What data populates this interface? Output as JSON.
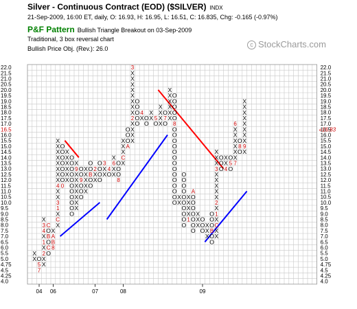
{
  "header": {
    "title": "Silver - Continuous Contract (EOD) ($SILVER)",
    "exchange": "INDX",
    "quote": "21-Sep-2009, 16:00 ET, daily, O: 16.93, H: 16.95, L: 16.51, C: 16.835, Chg: -0.165 (-0.97%)",
    "pattern_title": "P&F Pattern",
    "pattern_signal": "Bullish Triangle Breakout on 03-Sep-2009",
    "chart_type": "Traditional, 3 box reversal chart",
    "price_objective": "Bullish Price Obj. (Rev.): 26.0"
  },
  "watermark": {
    "text": "StockCharts.com",
    "icon": "copyright-icon"
  },
  "chart_data": {
    "type": "point-and-figure",
    "method": "Traditional",
    "reversal": 3,
    "price_levels": [
      "4.0",
      "4.25",
      "4.5",
      "4.75",
      "5.0",
      "5.5",
      "6.0",
      "6.5",
      "7.0",
      "7.5",
      "8.0",
      "8.5",
      "9.0",
      "9.5",
      "10.0",
      "10.5",
      "11.0",
      "11.5",
      "12.0",
      "12.5",
      "13.0",
      "13.5",
      "14.0",
      "14.5",
      "15.0",
      "15.5",
      "16.0",
      "16.5",
      "17.0",
      "17.5",
      "18.0",
      "18.5",
      "19.0",
      "19.5",
      "20.0",
      "20.5",
      "21.0",
      "21.5",
      "22.0"
    ],
    "current_price_label": "16.83",
    "year_labels": [
      {
        "text": "04",
        "col": 2
      },
      {
        "text": "06",
        "col": 5
      },
      {
        "text": "07",
        "col": 14
      },
      {
        "text": "08",
        "col": 20
      },
      {
        "text": "09",
        "col": 37
      }
    ],
    "columns": [
      {
        "type": "X",
        "from": 4,
        "to": 5
      },
      {
        "type": "O",
        "from": 2,
        "to": 4,
        "marks": [
          {
            "level": 3,
            "text": "5"
          },
          {
            "level": 2,
            "text": "7"
          }
        ]
      },
      {
        "type": "X",
        "from": 3,
        "to": 11,
        "marks": [
          {
            "level": 5,
            "text": "2"
          },
          {
            "level": 7,
            "text": "1"
          },
          {
            "level": 9,
            "text": "4"
          },
          {
            "level": 10,
            "text": "3"
          }
        ]
      },
      {
        "type": "O",
        "from": 5,
        "to": 10,
        "marks": [
          {
            "level": 6,
            "text": "C"
          },
          {
            "level": 8,
            "text": "B"
          },
          {
            "level": 10,
            "text": "C"
          }
        ]
      },
      {
        "type": "X",
        "from": 6,
        "to": 9,
        "marks": [
          {
            "level": 6,
            "text": "8"
          },
          {
            "level": 7,
            "text": "B"
          },
          {
            "level": 8,
            "text": "A"
          }
        ]
      },
      {
        "type": "X",
        "from": 10,
        "to": 25,
        "marks": [
          {
            "level": 11,
            "text": "C"
          },
          {
            "level": 13,
            "text": "1"
          },
          {
            "level": 14,
            "text": "3"
          },
          {
            "level": 17,
            "text": "4"
          }
        ]
      },
      {
        "type": "O",
        "from": 17,
        "to": 24,
        "marks": [
          {
            "level": 17,
            "text": "0"
          }
        ]
      },
      {
        "type": "X",
        "from": 18,
        "to": 23
      },
      {
        "type": "O",
        "from": 12,
        "to": 22
      },
      {
        "type": "X",
        "from": 13,
        "to": 21,
        "marks": [
          {
            "level": 20,
            "text": "9"
          }
        ]
      },
      {
        "type": "O",
        "from": 15,
        "to": 20,
        "marks": [
          {
            "level": 18,
            "text": "9"
          }
        ]
      },
      {
        "type": "X",
        "from": 16,
        "to": 20
      },
      {
        "type": "O",
        "from": 17,
        "to": 21,
        "marks": [
          {
            "level": 19,
            "text": "B"
          }
        ]
      },
      {
        "type": "X",
        "from": 18,
        "to": 20,
        "marks": [
          {
            "level": 20,
            "text": "2"
          }
        ]
      },
      {
        "type": "O",
        "from": 18,
        "to": 21,
        "marks": [
          {
            "level": 16,
            "text": "A"
          }
        ]
      },
      {
        "type": "X",
        "from": 19,
        "to": 21,
        "marks": [
          {
            "level": 21,
            "text": "3"
          }
        ]
      },
      {
        "type": "O",
        "from": 19,
        "to": 20,
        "marks": [
          {
            "level": 20,
            "text": "4"
          }
        ]
      },
      {
        "type": "X",
        "from": 19,
        "to": 22,
        "marks": [
          {
            "level": 21,
            "text": "6"
          }
        ]
      },
      {
        "type": "O",
        "from": 18,
        "to": 21,
        "marks": [
          {
            "level": 18,
            "text": "8"
          },
          {
            "level": 17,
            "text": "9"
          }
        ]
      },
      {
        "type": "X",
        "from": 21,
        "to": 25,
        "marks": [
          {
            "level": 22,
            "text": "C"
          }
        ]
      },
      {
        "type": "O",
        "from": 24,
        "to": 27,
        "marks": [
          {
            "level": 24,
            "text": "B"
          },
          {
            "level": 24,
            "text": "A"
          }
        ]
      },
      {
        "type": "X",
        "from": 25,
        "to": 38,
        "marks": [
          {
            "level": 29,
            "text": "2"
          },
          {
            "level": 38,
            "text": "3"
          }
        ]
      },
      {
        "type": "O",
        "from": 28,
        "to": 32
      },
      {
        "type": "X",
        "from": 29,
        "to": 30,
        "marks": [
          {
            "level": 30,
            "text": "4"
          }
        ]
      },
      {
        "type": "O",
        "from": 28,
        "to": 29
      },
      {
        "type": "X",
        "from": 29,
        "to": 30
      },
      {
        "type": "O",
        "from": 28,
        "to": 29,
        "marks": [
          {
            "level": 29,
            "text": "5"
          }
        ]
      },
      {
        "type": "X",
        "from": 28,
        "to": 31
      },
      {
        "type": "O",
        "from": 28,
        "to": 30,
        "marks": [
          {
            "level": 29,
            "text": "7"
          }
        ]
      },
      {
        "type": "X",
        "from": 29,
        "to": 34
      },
      {
        "type": "O",
        "from": 14,
        "to": 33,
        "marks": [
          {
            "level": 28,
            "text": "8"
          }
        ]
      },
      {
        "type": "X",
        "from": 14,
        "to": 15
      },
      {
        "type": "O",
        "from": 10,
        "to": 19,
        "marks": [
          {
            "level": 20,
            "text": "9"
          }
        ]
      },
      {
        "type": "X",
        "from": 11,
        "to": 15,
        "marks": [
          {
            "level": 11,
            "text": "1"
          }
        ]
      },
      {
        "type": "O",
        "from": 9,
        "to": 16,
        "marks": [
          {
            "level": 16,
            "text": "A"
          }
        ]
      },
      {
        "type": "X",
        "from": 10,
        "to": 12
      },
      {
        "type": "O",
        "from": 9,
        "to": 11
      },
      {
        "type": "X",
        "from": 8,
        "to": 10
      },
      {
        "type": "O",
        "from": 7,
        "to": 12,
        "marks": [
          {
            "level": 9,
            "text": "B"
          }
        ]
      },
      {
        "type": "X",
        "from": 8,
        "to": 23,
        "marks": [
          {
            "level": 10,
            "text": "C"
          },
          {
            "level": 12,
            "text": "1"
          },
          {
            "level": 14,
            "text": "2"
          },
          {
            "level": 20,
            "text": "3"
          }
        ]
      },
      {
        "type": "O",
        "from": 20,
        "to": 22
      },
      {
        "type": "X",
        "from": 20,
        "to": 22,
        "marks": [
          {
            "level": 20,
            "text": "4"
          }
        ]
      },
      {
        "type": "O",
        "from": 20,
        "to": 22,
        "marks": [
          {
            "level": 21,
            "text": "5"
          }
        ]
      },
      {
        "type": "X",
        "from": 21,
        "to": 28,
        "marks": [
          {
            "level": 21,
            "text": "7"
          },
          {
            "level": 28,
            "text": "6"
          }
        ]
      },
      {
        "type": "O",
        "from": 23,
        "to": 25,
        "marks": [
          {
            "level": 24,
            "text": "8"
          }
        ]
      },
      {
        "type": "X",
        "from": 23,
        "to": 32,
        "marks": [
          {
            "level": 24,
            "text": "9"
          }
        ]
      }
    ],
    "trend_lines": [
      {
        "kind": "support",
        "color": "#0000ff",
        "from": {
          "col": 6.5,
          "level": 8
        },
        "to": {
          "col": 15,
          "level": 14
        }
      },
      {
        "kind": "support",
        "color": "#0000ff",
        "from": {
          "col": 16.5,
          "level": 11
        },
        "to": {
          "col": 29.5,
          "level": 26
        }
      },
      {
        "kind": "support",
        "color": "#0000ff",
        "from": {
          "col": 37.5,
          "level": 7
        },
        "to": {
          "col": 46.5,
          "level": 16
        }
      },
      {
        "kind": "resistance",
        "color": "#ff0000",
        "from": {
          "col": 7.5,
          "level": 25
        },
        "to": {
          "col": 10.5,
          "level": 22
        }
      },
      {
        "kind": "resistance",
        "color": "#ff0000",
        "from": {
          "col": 27.5,
          "level": 34
        },
        "to": {
          "col": 41.5,
          "level": 20
        }
      }
    ]
  }
}
